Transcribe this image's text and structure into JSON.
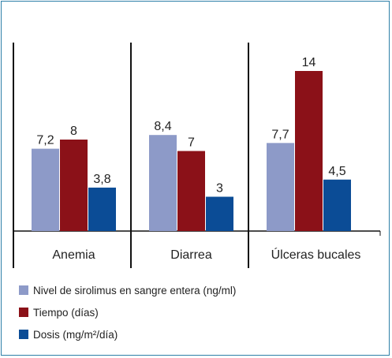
{
  "chart_data": {
    "type": "bar",
    "categories": [
      "Anemia",
      "Diarrea",
      "Úlceras bucales"
    ],
    "series": [
      {
        "name": "Nivel de sirolimus en sangre entera (ng/ml)",
        "color": "#8d9ac8",
        "values": [
          7.2,
          8.4,
          7.7
        ],
        "labels": [
          "7,2",
          "8,4",
          "7,7"
        ]
      },
      {
        "name": "Tiempo (días)",
        "color": "#8b1118",
        "values": [
          8,
          7,
          14
        ],
        "labels": [
          "8",
          "7",
          "14"
        ]
      },
      {
        "name": "Dosis (mg/m²/día)",
        "color": "#0b4c96",
        "values": [
          3.8,
          3,
          4.5
        ],
        "labels": [
          "3,8",
          "3",
          "4,5"
        ]
      }
    ],
    "title": "",
    "xlabel": "",
    "ylabel": "",
    "ylim": [
      0,
      16
    ],
    "grid": false,
    "legend_position": "bottom-left"
  },
  "legend": {
    "items": [
      "Nivel de sirolimus en sangre entera (ng/ml)",
      "Tiempo (días)",
      "Dosis (mg/m²/día)"
    ]
  }
}
